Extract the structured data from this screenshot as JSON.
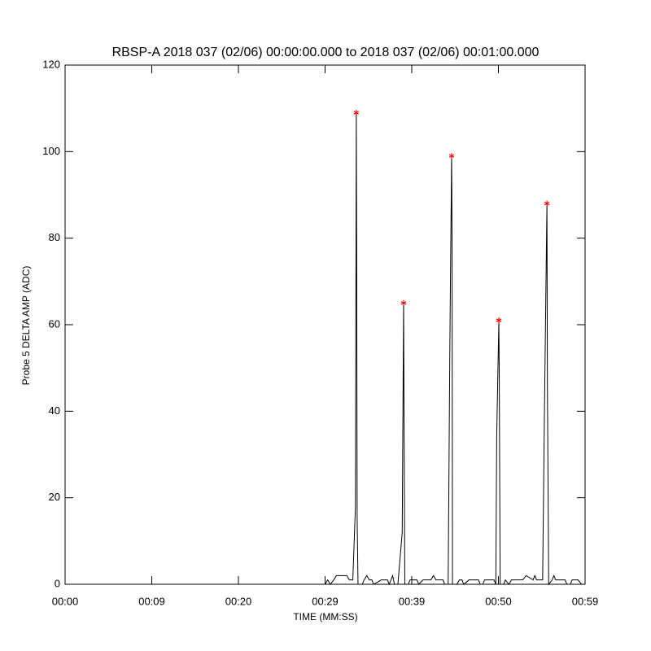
{
  "chart_data": {
    "type": "line",
    "title": "RBSP-A 2018 037 (02/06) 00:00:00.000 to 2018 037 (02/06) 00:01:00.000",
    "xlabel": "TIME (MM:SS)",
    "ylabel": "Probe 5 DELTA AMP (ADC)",
    "xlim": [
      0,
      60
    ],
    "ylim": [
      0,
      120
    ],
    "xticks": [
      {
        "value": 0,
        "label": "00:00"
      },
      {
        "value": 10,
        "label": "00:09"
      },
      {
        "value": 20,
        "label": "00:20"
      },
      {
        "value": 30,
        "label": "00:29"
      },
      {
        "value": 40,
        "label": "00:39"
      },
      {
        "value": 50,
        "label": "00:50"
      },
      {
        "value": 60,
        "label": "00:59"
      }
    ],
    "yticks": [
      0,
      20,
      40,
      60,
      80,
      100,
      120
    ],
    "series": [
      {
        "color": "#000000",
        "x": [
          30.0,
          30.3,
          30.6,
          31.0,
          31.3,
          32.5,
          32.8,
          33.2,
          33.5,
          33.6,
          33.65,
          33.7,
          33.8,
          34.3,
          34.5,
          34.8,
          35.1,
          35.4,
          35.6,
          36.5,
          37.2,
          37.4,
          37.8,
          38.0,
          38.4,
          38.9,
          39.06,
          39.1,
          39.2,
          39.6,
          39.8,
          40.6,
          40.8,
          41.3,
          42.2,
          42.5,
          42.8,
          43.6,
          43.8,
          44.2,
          44.4,
          44.6,
          44.65,
          44.7,
          45.2,
          45.5,
          45.8,
          46.0,
          46.6,
          47.7,
          47.9,
          48.2,
          48.4,
          49.5,
          49.7,
          49.8,
          50.05,
          50.1,
          50.2,
          50.6,
          50.8,
          51.2,
          51.5,
          52.8,
          53.2,
          54.0,
          54.2,
          54.4,
          55.1,
          55.3,
          55.6,
          55.65,
          55.8,
          56.2,
          56.4,
          56.6,
          57.7,
          57.9,
          58.3,
          58.5,
          59.2,
          59.6
        ],
        "values": [
          0,
          1,
          0,
          1,
          2,
          2,
          1,
          1,
          18,
          109,
          70,
          15,
          0,
          0,
          1,
          2,
          1,
          1,
          0,
          1,
          1,
          0,
          2,
          0,
          0,
          12,
          65,
          42,
          0,
          0,
          1,
          1,
          0,
          1,
          1,
          2,
          1,
          1,
          0,
          0,
          56,
          99,
          79,
          0,
          0,
          1,
          1,
          0,
          1,
          1,
          0,
          0,
          1,
          1,
          0,
          34,
          61,
          47,
          0,
          0,
          1,
          0,
          1,
          1,
          2,
          1,
          2,
          1,
          1,
          38,
          88,
          47,
          0,
          1,
          2,
          1,
          1,
          0,
          0,
          1,
          1,
          0
        ]
      },
      {
        "color": "#ff0000",
        "marker": "*",
        "x": [
          33.6,
          39.06,
          44.6,
          50.05,
          55.6
        ],
        "values": [
          109,
          65,
          99,
          61,
          88
        ]
      }
    ]
  }
}
